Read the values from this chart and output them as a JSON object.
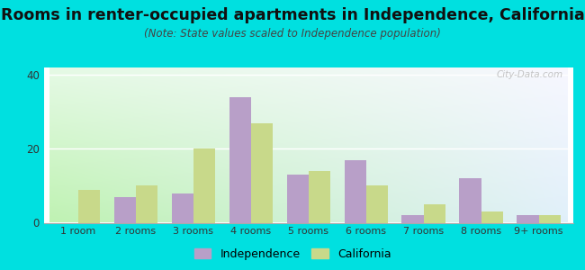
{
  "categories": [
    "1 room",
    "2 rooms",
    "3 rooms",
    "4 rooms",
    "5 rooms",
    "6 rooms",
    "7 rooms",
    "8 rooms",
    "9+ rooms"
  ],
  "independence": [
    0,
    7,
    8,
    34,
    13,
    17,
    2,
    12,
    2
  ],
  "california": [
    9,
    10,
    20,
    27,
    14,
    10,
    5,
    3,
    2
  ],
  "independence_color": "#b89fc8",
  "california_color": "#c8d98a",
  "title": "Rooms in renter-occupied apartments in Independence, California",
  "subtitle": "(Note: State values scaled to Independence population)",
  "title_fontsize": 12.5,
  "subtitle_fontsize": 8.5,
  "ylim": [
    0,
    42
  ],
  "yticks": [
    0,
    20,
    40
  ],
  "background_outer": "#00e0e0",
  "bar_width": 0.38,
  "legend_independence": "Independence",
  "legend_california": "California"
}
